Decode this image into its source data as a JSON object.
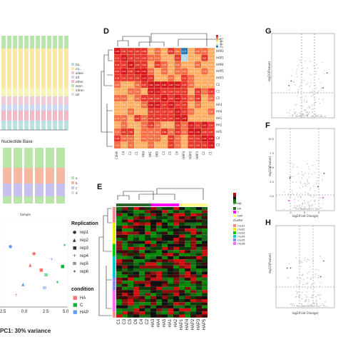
{
  "panels": {
    "D": "D",
    "E": "E",
    "F": "F",
    "G": "G",
    "H": "H"
  },
  "top_left": {
    "xlabel": "Nucleotide Base",
    "legend": [
      "ha...",
      "ca...",
      "allele",
      "alt",
      "other",
      "exon",
      "intron",
      "utr"
    ]
  },
  "mid_left": {
    "xlabel": "Sample",
    "legend": [
      "a",
      "b",
      "c",
      "d"
    ]
  },
  "pca": {
    "xlabel": "PC1: 30% variance",
    "xticks": [
      "-2.5",
      "0.0",
      "2.5",
      "5.0"
    ],
    "replication_title": "Replication",
    "replication": [
      {
        "symbol": "●",
        "label": "rep1"
      },
      {
        "symbol": "▲",
        "label": "rep2"
      },
      {
        "symbol": "■",
        "label": "rep3"
      },
      {
        "symbol": "+",
        "label": "rep4"
      },
      {
        "symbol": "⊠",
        "label": "rep5"
      },
      {
        "symbol": "∗",
        "label": "rep6"
      }
    ],
    "condition_title": "condition",
    "condition": [
      {
        "label": "HA",
        "color": "#f8766d"
      },
      {
        "label": "C",
        "color": "#00ba38"
      },
      {
        "label": "HAP",
        "color": "#619cff"
      }
    ]
  },
  "heatmapD": {
    "labels_right": [
      "HAP2",
      "HAP1",
      "HAP4",
      "HAP5",
      "HAP3",
      "C2",
      "C1",
      "C5",
      "HA3",
      "HA4",
      "HA1",
      "HA2",
      "HA5",
      "C4",
      "C3"
    ],
    "labels_bottom": [
      "C4HA",
      "C4",
      "C2",
      "C1",
      "HA4",
      "HA1",
      "HA5",
      "C3",
      "C5",
      "C6",
      "HAP4",
      "HAP5",
      "HAP3",
      "C2",
      "C1"
    ],
    "scale": [
      "1",
      "0.9",
      "0.8",
      "0.7",
      "0.6"
    ],
    "colors": {
      "high": "#d7191c",
      "mid": "#fdae61",
      "low": "#ffffbf",
      "blue": "#2c7bb6"
    }
  },
  "heatmapE": {
    "group_title": "group",
    "groups": [
      {
        "label": "HA",
        "color": "#2b6a2b"
      },
      {
        "label": "C",
        "color": "#f0f"
      },
      {
        "label": "HAP",
        "color": "#ff8"
      }
    ],
    "cluster_title": "cluster",
    "clusters": [
      {
        "label": "clust1",
        "color": "#f88"
      },
      {
        "label": "clust2",
        "color": "#ee0"
      },
      {
        "label": "clust3",
        "color": "#0c0"
      },
      {
        "label": "clust4",
        "color": "#0cc"
      },
      {
        "label": "clust5",
        "color": "#88f"
      },
      {
        "label": "clust6",
        "color": "#f6f"
      }
    ],
    "col_labels": [
      "C1",
      "C3",
      "C5",
      "C6",
      "C4",
      "C2",
      "HA3",
      "HA4",
      "HA5",
      "HA1",
      "HA2",
      "HAP1",
      "HAP4",
      "HAP2",
      "HAP3",
      "HAP5"
    ]
  },
  "volcano": {
    "ylabel": "-log10(Pvalue)",
    "xlabel": "log2(Fold Change)",
    "f_yticks": [
      "10.0",
      "7.5",
      "5.0",
      "2.5",
      "0.0"
    ],
    "f_xticks": [
      "-3",
      "0",
      "3"
    ]
  }
}
